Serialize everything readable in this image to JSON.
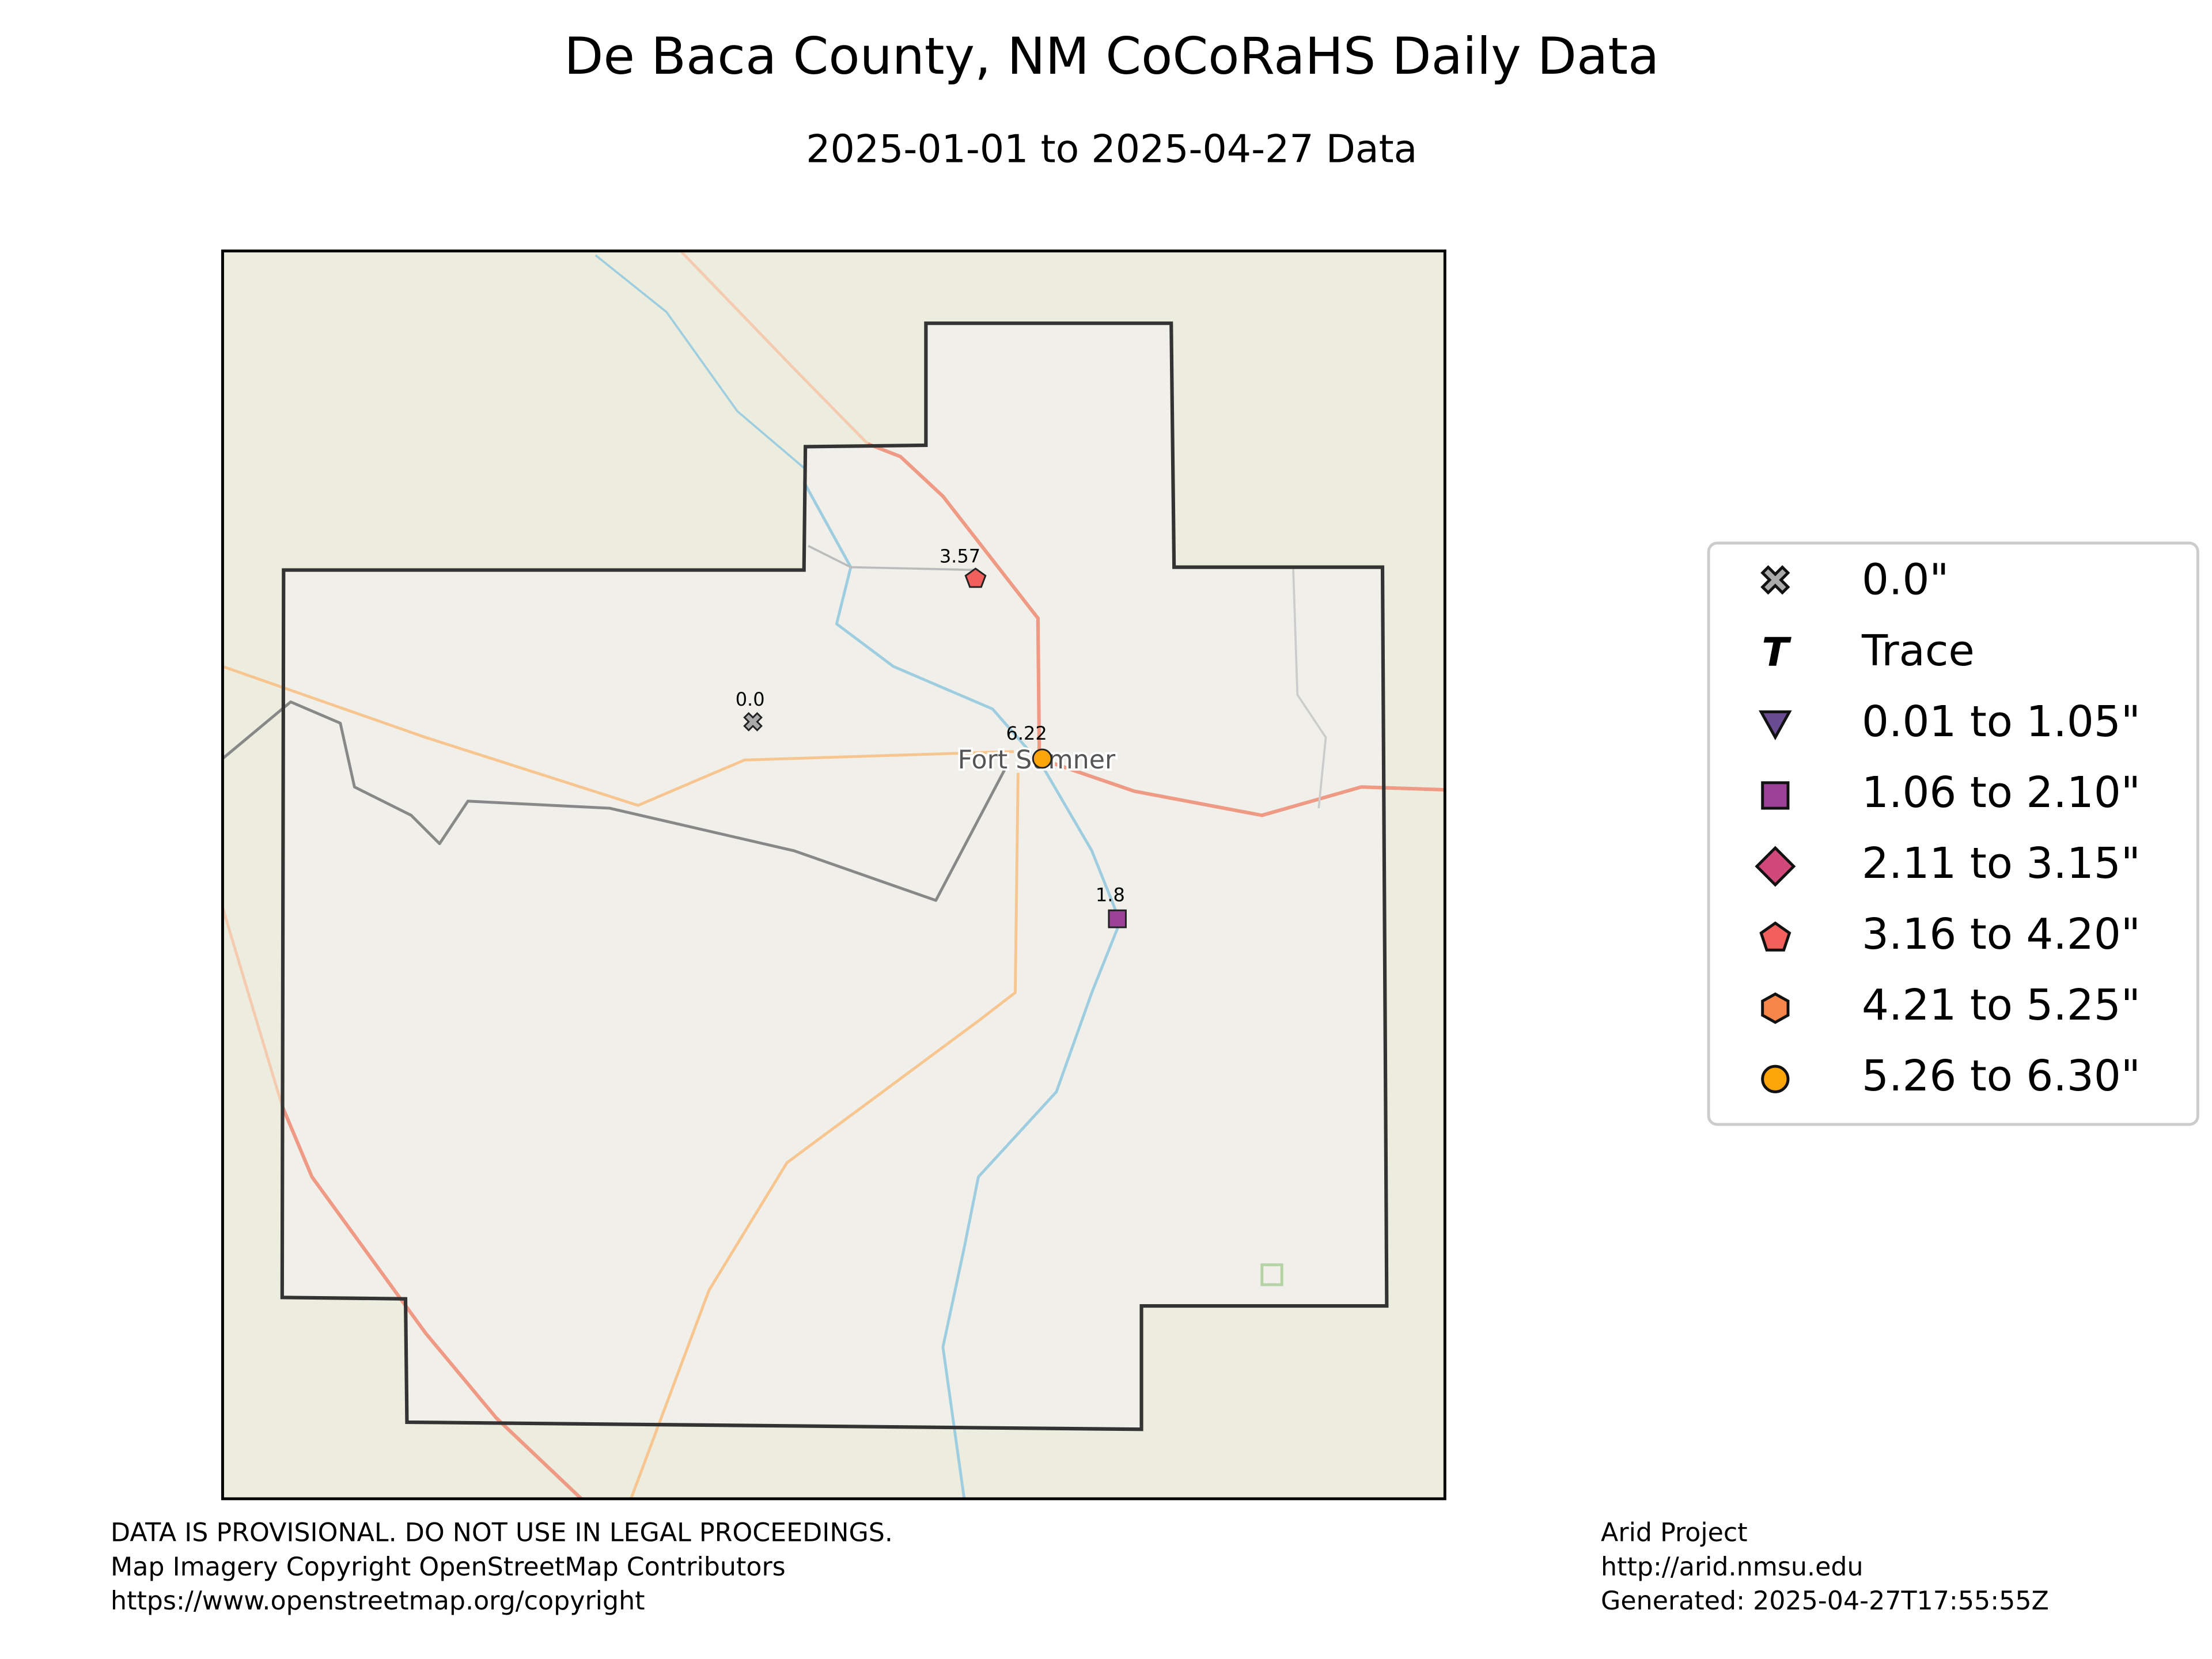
{
  "title": "De Baca County, NM CoCoRaHS Daily Data",
  "subtitle": "2025-01-01 to 2025-04-27 Data",
  "map": {
    "place_labels": [
      "Fort Sumner"
    ],
    "stations": [
      {
        "label": "0.0"
      },
      {
        "label": "3.57"
      },
      {
        "label": "6.22"
      },
      {
        "label": "1.8"
      }
    ]
  },
  "legend": {
    "entries": [
      "0.0\"",
      "Trace",
      "0.01 to 1.05\"",
      "1.06 to 2.10\"",
      "2.11 to 3.15\"",
      "3.16 to 4.20\"",
      "4.21 to 5.25\"",
      "5.26 to 6.30\""
    ]
  },
  "footer": {
    "left": [
      "DATA IS PROVISIONAL. DO NOT USE IN LEGAL PROCEEDINGS.",
      "Map Imagery Copyright OpenStreetMap Contributors",
      "https://www.openstreetmap.org/copyright"
    ],
    "right": [
      "Arid Project",
      "http://arid.nmsu.edu",
      "Generated: 2025-04-27T17:55:55Z"
    ]
  }
}
